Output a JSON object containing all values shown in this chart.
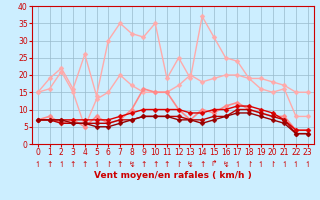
{
  "x": [
    0,
    1,
    2,
    3,
    4,
    5,
    6,
    7,
    8,
    9,
    10,
    11,
    12,
    13,
    14,
    15,
    16,
    17,
    18,
    19,
    20,
    21,
    22,
    23
  ],
  "series": [
    {
      "name": "rafales_peak",
      "color": "#ffaaaa",
      "lw": 1.0,
      "markersize": 2.5,
      "values": [
        15,
        19,
        22,
        16,
        26,
        14,
        30,
        35,
        32,
        31,
        35,
        19,
        25,
        19,
        37,
        31,
        25,
        24,
        19,
        16,
        15,
        16,
        8,
        8
      ]
    },
    {
      "name": "rafales_avg",
      "color": "#ffaaaa",
      "lw": 1.0,
      "markersize": 2.5,
      "values": [
        15,
        16,
        21,
        15,
        5,
        13,
        15,
        20,
        17,
        15,
        15,
        15,
        17,
        20,
        18,
        19,
        20,
        20,
        19,
        19,
        18,
        17,
        15,
        15
      ]
    },
    {
      "name": "wind_med",
      "color": "#ff8888",
      "lw": 1.2,
      "markersize": 2.5,
      "values": [
        7,
        8,
        6,
        7,
        5,
        8,
        6,
        7,
        10,
        16,
        15,
        15,
        10,
        7,
        10,
        9,
        11,
        12,
        10,
        9,
        8,
        8,
        4,
        4
      ]
    },
    {
      "name": "wind_dark1",
      "color": "#dd0000",
      "lw": 1.0,
      "markersize": 2.5,
      "values": [
        7,
        7,
        7,
        7,
        7,
        7,
        7,
        8,
        9,
        10,
        10,
        10,
        10,
        9,
        9,
        10,
        10,
        11,
        11,
        10,
        9,
        7,
        4,
        4
      ]
    },
    {
      "name": "wind_dark2",
      "color": "#bb0000",
      "lw": 1.0,
      "markersize": 2.5,
      "values": [
        7,
        7,
        6,
        6,
        6,
        6,
        6,
        7,
        7,
        8,
        8,
        8,
        8,
        7,
        7,
        8,
        8,
        10,
        10,
        9,
        8,
        7,
        3,
        3
      ]
    },
    {
      "name": "wind_dark3",
      "color": "#990000",
      "lw": 1.0,
      "markersize": 2.5,
      "values": [
        7,
        7,
        7,
        6,
        6,
        5,
        5,
        6,
        7,
        8,
        8,
        8,
        7,
        7,
        6,
        7,
        8,
        9,
        9,
        8,
        7,
        6,
        3,
        3
      ]
    }
  ],
  "wind_arrows": [
    "↿",
    "↑",
    "↿",
    "↑",
    "↑",
    "↿",
    "↾",
    "↑",
    "↯",
    "↑",
    "↑",
    "↑",
    "↾",
    "↯",
    "↑",
    "↱",
    "↯",
    "↿",
    "↾",
    "↿",
    "↾",
    "↿",
    "↿",
    "↿"
  ],
  "xlabel": "Vent moyen/en rafales ( km/h )",
  "xlim": [
    0,
    23
  ],
  "ylim": [
    0,
    40
  ],
  "yticks": [
    0,
    5,
    10,
    15,
    20,
    25,
    30,
    35,
    40
  ],
  "xticks": [
    0,
    1,
    2,
    3,
    4,
    5,
    6,
    7,
    8,
    9,
    10,
    11,
    12,
    13,
    14,
    15,
    16,
    17,
    18,
    19,
    20,
    21,
    22,
    23
  ],
  "bg_color": "#cceeff",
  "grid_color": "#99bbcc",
  "xlabel_fontsize": 6.5,
  "tick_fontsize": 5.5,
  "arrow_fontsize": 5.5,
  "red_color": "#cc0000"
}
